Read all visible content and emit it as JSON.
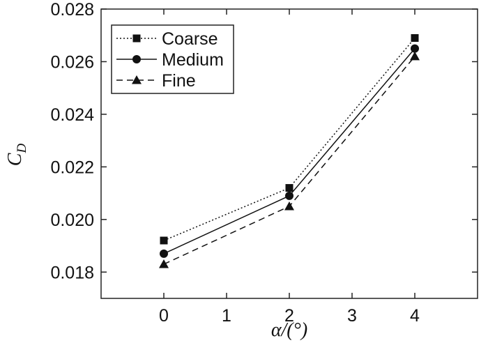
{
  "chart_data": {
    "type": "line",
    "xlabel": "α/(°)",
    "ylabel": "C",
    "ylabel_subscript": "D",
    "xlim": [
      -1,
      5
    ],
    "ylim": [
      0.017,
      0.028
    ],
    "xticks": [
      "0",
      "1",
      "2",
      "3",
      "4"
    ],
    "yticks": [
      "0.018",
      "0.020",
      "0.022",
      "0.024",
      "0.026",
      "0.028"
    ],
    "grid": false,
    "legend_position": "top-left",
    "series": [
      {
        "name": "Coarse",
        "marker": "square",
        "dash": "dotted",
        "x": [
          0,
          2,
          4
        ],
        "y": [
          0.0192,
          0.0212,
          0.0269
        ]
      },
      {
        "name": "Medium",
        "marker": "circle",
        "dash": "solid",
        "x": [
          0,
          2,
          4
        ],
        "y": [
          0.0187,
          0.0209,
          0.0265
        ]
      },
      {
        "name": "Fine",
        "marker": "triangle",
        "dash": "dashed",
        "x": [
          0,
          2,
          4
        ],
        "y": [
          0.0183,
          0.0205,
          0.0262
        ]
      }
    ]
  }
}
